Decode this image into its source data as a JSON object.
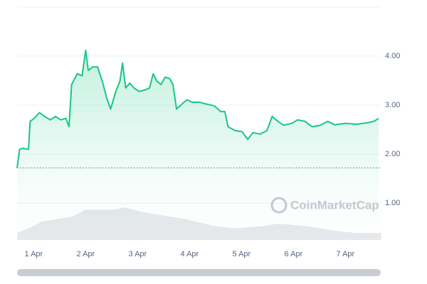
{
  "chart_data": {
    "type": "line",
    "watermark": "CoinMarketCap",
    "x": [
      0.68,
      0.73,
      0.79,
      0.9,
      0.93,
      1.01,
      1.11,
      1.21,
      1.32,
      1.42,
      1.52,
      1.62,
      1.68,
      1.73,
      1.84,
      1.93,
      2.0,
      2.05,
      2.14,
      2.23,
      2.32,
      2.41,
      2.48,
      2.58,
      2.66,
      2.71,
      2.77,
      2.85,
      2.93,
      3.03,
      3.14,
      3.23,
      3.3,
      3.37,
      3.45,
      3.53,
      3.62,
      3.68,
      3.75,
      3.85,
      3.95,
      4.05,
      4.19,
      4.33,
      4.47,
      4.6,
      4.68,
      4.74,
      4.88,
      5.01,
      5.12,
      5.22,
      5.36,
      5.49,
      5.59,
      5.7,
      5.81,
      5.97,
      6.08,
      6.22,
      6.36,
      6.52,
      6.66,
      6.79,
      7.0,
      7.21,
      7.41,
      7.55,
      7.64
    ],
    "series": [
      {
        "color": "#16c784",
        "values": [
          1.72,
          2.1,
          2.12,
          2.1,
          2.67,
          2.73,
          2.85,
          2.77,
          2.7,
          2.77,
          2.7,
          2.73,
          2.56,
          3.42,
          3.64,
          3.6,
          4.12,
          3.71,
          3.78,
          3.78,
          3.49,
          3.13,
          2.92,
          3.28,
          3.49,
          3.86,
          3.35,
          3.45,
          3.35,
          3.28,
          3.31,
          3.35,
          3.64,
          3.49,
          3.42,
          3.57,
          3.54,
          3.42,
          2.92,
          3.02,
          3.11,
          3.06,
          3.06,
          3.02,
          2.99,
          2.87,
          2.87,
          2.56,
          2.48,
          2.46,
          2.3,
          2.44,
          2.41,
          2.48,
          2.77,
          2.67,
          2.59,
          2.63,
          2.7,
          2.67,
          2.56,
          2.59,
          2.67,
          2.6,
          2.63,
          2.61,
          2.64,
          2.67,
          2.73
        ]
      }
    ],
    "volume": {
      "color": "#e6e8ec",
      "x": [
        0.68,
        0.9,
        1.17,
        1.73,
        2.0,
        2.55,
        2.75,
        3.09,
        3.64,
        3.92,
        4.47,
        4.88,
        5.42,
        5.7,
        6.25,
        6.79,
        7.21,
        7.69
      ],
      "values": [
        3,
        5,
        8,
        10,
        13,
        13,
        14,
        12,
        10,
        9,
        6,
        5,
        6,
        7,
        6,
        4,
        3,
        3
      ],
      "y2lim": [
        0,
        100
      ]
    },
    "xlim": [
      0.68,
      7.68
    ],
    "xticks": [
      {
        "value": 1,
        "label": "1 Apr"
      },
      {
        "value": 2,
        "label": "2 Apr"
      },
      {
        "value": 3,
        "label": "3 Apr"
      },
      {
        "value": 4,
        "label": "4 Apr"
      },
      {
        "value": 5,
        "label": "5 Apr"
      },
      {
        "value": 6,
        "label": "6 Apr"
      },
      {
        "value": 7,
        "label": "7 Apr"
      }
    ],
    "ylim": [
      0.25,
      5.0
    ],
    "yticks": [
      {
        "value": 1,
        "label": "1.00"
      },
      {
        "value": 2,
        "label": "2.00"
      },
      {
        "value": 3,
        "label": "3.00"
      },
      {
        "value": 4,
        "label": "4.00"
      }
    ],
    "grid": true
  }
}
